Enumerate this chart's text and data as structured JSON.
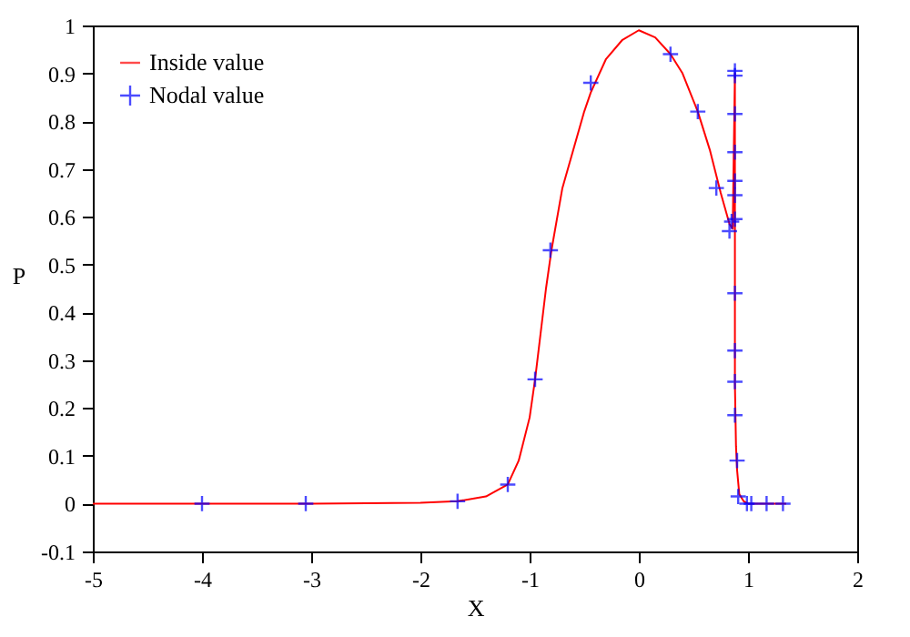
{
  "chart_data": {
    "type": "line",
    "xlabel": "X",
    "ylabel": "P",
    "xlim": [
      -5,
      2
    ],
    "ylim": [
      -0.1,
      1
    ],
    "xticks": [
      -5,
      -4,
      -3,
      -2,
      -1,
      0,
      1,
      2
    ],
    "yticks": [
      -0.1,
      0,
      0.1,
      0.2,
      0.3,
      0.4,
      0.5,
      0.6,
      0.7,
      0.8,
      0.9,
      1
    ],
    "grid": false,
    "legend": "top left",
    "series": [
      {
        "name": "Inside value",
        "color": "#ff0000",
        "line_style": "solid",
        "x": [
          -5,
          -3,
          -2,
          -1.66,
          -1.4,
          -1.2,
          -1.1,
          -1.0,
          -0.95,
          -0.85,
          -0.8,
          -0.7,
          -0.5,
          -0.44,
          -0.3,
          -0.15,
          0,
          0.15,
          0.29,
          0.4,
          0.54,
          0.65,
          0.75,
          0.83,
          0.86,
          0.88,
          0.88,
          0.88,
          0.89,
          0.9,
          0.92,
          0.96,
          1.0,
          1.35
        ],
        "values": [
          0,
          0,
          0.002,
          0.005,
          0.015,
          0.04,
          0.09,
          0.18,
          0.26,
          0.45,
          0.53,
          0.66,
          0.82,
          0.86,
          0.93,
          0.97,
          0.99,
          0.975,
          0.94,
          0.9,
          0.82,
          0.74,
          0.65,
          0.585,
          0.575,
          0.9,
          0.5,
          0.25,
          0.12,
          0.07,
          0.02,
          0.005,
          0,
          0
        ]
      },
      {
        "name": "Nodal value",
        "type": "scatter",
        "color": "#0000ff",
        "marker": "cross",
        "x": [
          -4.0,
          -3.05,
          -1.66,
          -1.2,
          -0.95,
          -0.81,
          -0.44,
          0.29,
          0.54,
          0.71,
          0.83,
          0.85,
          0.88,
          0.88,
          0.88,
          0.88,
          0.88,
          0.88,
          0.88,
          0.88,
          0.88,
          0.88,
          0.88,
          0.9,
          0.91,
          0.99,
          1.03,
          1.17,
          1.32
        ],
        "values": [
          0,
          0,
          0.005,
          0.04,
          0.26,
          0.53,
          0.88,
          0.94,
          0.82,
          0.66,
          0.57,
          0.59,
          0.905,
          0.895,
          0.815,
          0.735,
          0.675,
          0.645,
          0.595,
          0.44,
          0.32,
          0.255,
          0.185,
          0.09,
          0.015,
          0,
          0,
          0,
          0
        ]
      }
    ]
  }
}
